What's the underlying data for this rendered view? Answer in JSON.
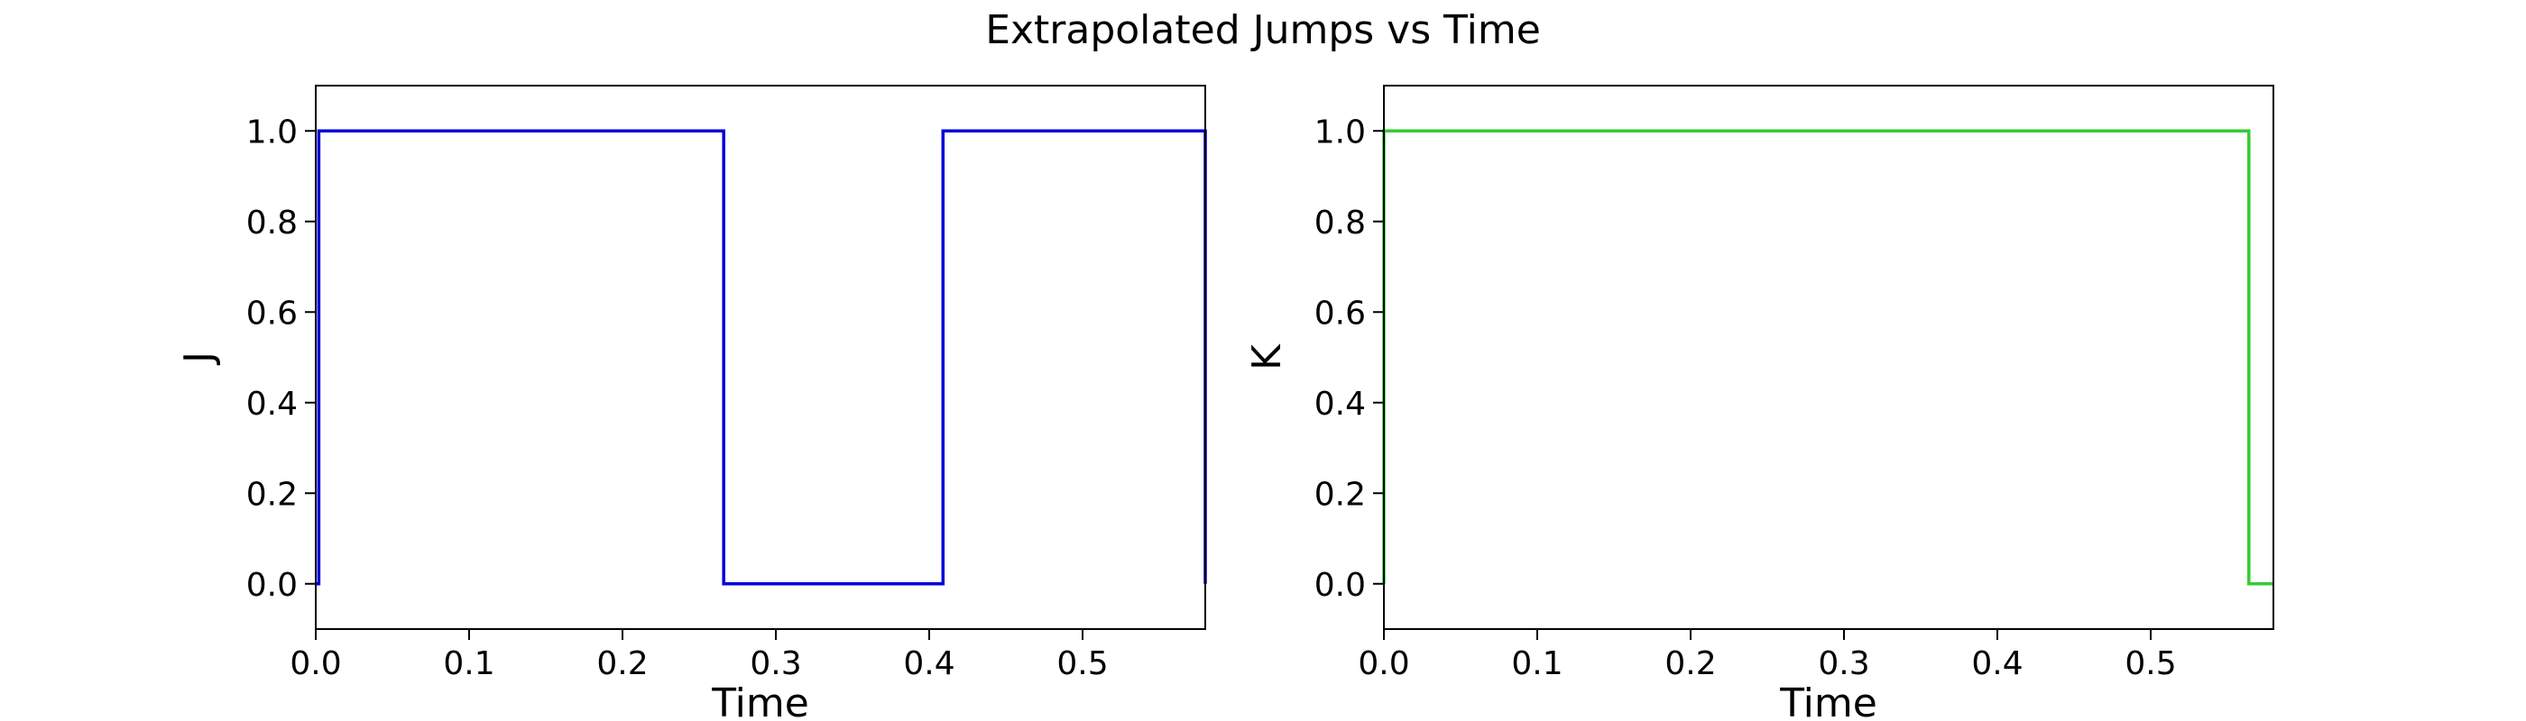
{
  "figure": {
    "title": "Extrapolated Jumps vs Time"
  },
  "chart_data": [
    {
      "type": "line",
      "step": "post",
      "xlabel": "Time",
      "ylabel": "J",
      "xlim": [
        0.0,
        0.58
      ],
      "ylim": [
        -0.1,
        1.1
      ],
      "xticks": [
        0.0,
        0.1,
        0.2,
        0.3,
        0.4,
        0.5
      ],
      "xtick_labels": [
        "0.0",
        "0.1",
        "0.2",
        "0.3",
        "0.4",
        "0.5"
      ],
      "yticks": [
        0.0,
        0.2,
        0.4,
        0.6,
        0.8,
        1.0
      ],
      "ytick_labels": [
        "0.0",
        "0.2",
        "0.4",
        "0.6",
        "0.8",
        "1.0"
      ],
      "grid": false,
      "series": [
        {
          "color": "#0000dd",
          "x": [
            0.0,
            0.002,
            0.266,
            0.409,
            0.58
          ],
          "y": [
            0,
            1,
            0,
            1,
            0
          ]
        }
      ]
    },
    {
      "type": "line",
      "step": "post",
      "xlabel": "Time",
      "ylabel": "K",
      "xlim": [
        0.0,
        0.58
      ],
      "ylim": [
        -0.1,
        1.1
      ],
      "xticks": [
        0.0,
        0.1,
        0.2,
        0.3,
        0.4,
        0.5
      ],
      "xtick_labels": [
        "0.0",
        "0.1",
        "0.2",
        "0.3",
        "0.4",
        "0.5"
      ],
      "yticks": [
        0.0,
        0.2,
        0.4,
        0.6,
        0.8,
        1.0
      ],
      "ytick_labels": [
        "0.0",
        "0.2",
        "0.4",
        "0.6",
        "0.8",
        "1.0"
      ],
      "grid": false,
      "series": [
        {
          "color": "#33cc33",
          "x": [
            0.0,
            0.0,
            0.564,
            0.58
          ],
          "y": [
            0,
            1,
            0,
            0
          ]
        }
      ]
    }
  ]
}
